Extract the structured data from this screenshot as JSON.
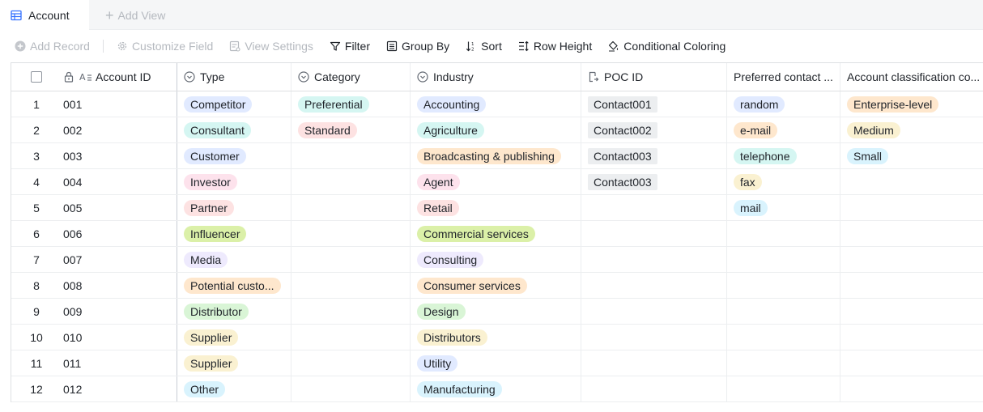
{
  "tabs": {
    "active_label": "Account",
    "add_label": "Add View"
  },
  "toolbar": {
    "add_record": "Add Record",
    "customize_field": "Customize Field",
    "view_settings": "View Settings",
    "filter": "Filter",
    "group_by": "Group By",
    "sort": "Sort",
    "row_height": "Row Height",
    "conditional_coloring": "Conditional Coloring"
  },
  "columns": {
    "account_id": "Account ID",
    "type": "Type",
    "category": "Category",
    "industry": "Industry",
    "poc_id": "POC ID",
    "preferred_contact": "Preferred contact ...",
    "account_classification": "Account classification co..."
  },
  "colors": {
    "blue": "#e1eaff",
    "teal": "#d5f6f2",
    "pink": "#fde2e2",
    "purple": "#eeeafd",
    "green": "#d9f5d6",
    "lime": "#dbf0a8",
    "orange": "#fee7cd",
    "yellow": "#faf1d1",
    "cyan": "#d9f3fd",
    "rose": "#fde2ec"
  },
  "rows": [
    {
      "num": "1",
      "id": "001",
      "type": "Competitor",
      "type_color": "#e1eaff",
      "category": "Preferential",
      "category_color": "#d5f6f2",
      "industry": "Accounting",
      "industry_color": "#e1eaff",
      "poc": "Contact001",
      "contact": "random",
      "contact_color": "#e1eaff",
      "class": "Enterprise-level",
      "class_color": "#fee7cd"
    },
    {
      "num": "2",
      "id": "002",
      "type": "Consultant",
      "type_color": "#d5f6f2",
      "category": "Standard",
      "category_color": "#fde2e2",
      "industry": "Agriculture",
      "industry_color": "#d5f6f2",
      "poc": "Contact002",
      "contact": "e-mail",
      "contact_color": "#fee7cd",
      "class": "Medium",
      "class_color": "#faf1d1"
    },
    {
      "num": "3",
      "id": "003",
      "type": "Customer",
      "type_color": "#e1eaff",
      "category": "",
      "category_color": "",
      "industry": "Broadcasting & publishing",
      "industry_color": "#fee7cd",
      "poc": "Contact003",
      "contact": "telephone",
      "contact_color": "#d5f6f2",
      "class": "Small",
      "class_color": "#d9f3fd"
    },
    {
      "num": "4",
      "id": "004",
      "type": "Investor",
      "type_color": "#fde2ec",
      "category": "",
      "category_color": "",
      "industry": "Agent",
      "industry_color": "#fde2ec",
      "poc": "Contact003",
      "contact": "fax",
      "contact_color": "#faf1d1",
      "class": "",
      "class_color": ""
    },
    {
      "num": "5",
      "id": "005",
      "type": "Partner",
      "type_color": "#fde2e2",
      "category": "",
      "category_color": "",
      "industry": "Retail",
      "industry_color": "#fde2e2",
      "poc": "",
      "contact": "mail",
      "contact_color": "#d9f3fd",
      "class": "",
      "class_color": ""
    },
    {
      "num": "6",
      "id": "006",
      "type": "Influencer",
      "type_color": "#dbf0a8",
      "category": "",
      "category_color": "",
      "industry": "Commercial services",
      "industry_color": "#dbf0a8",
      "poc": "",
      "contact": "",
      "contact_color": "",
      "class": "",
      "class_color": ""
    },
    {
      "num": "7",
      "id": "007",
      "type": "Media",
      "type_color": "#eeeafd",
      "category": "",
      "category_color": "",
      "industry": "Consulting",
      "industry_color": "#eeeafd",
      "poc": "",
      "contact": "",
      "contact_color": "",
      "class": "",
      "class_color": ""
    },
    {
      "num": "8",
      "id": "008",
      "type": "Potential custo...",
      "type_color": "#fee7cd",
      "category": "",
      "category_color": "",
      "industry": "Consumer services",
      "industry_color": "#fee7cd",
      "poc": "",
      "contact": "",
      "contact_color": "",
      "class": "",
      "class_color": ""
    },
    {
      "num": "9",
      "id": "009",
      "type": "Distributor",
      "type_color": "#d9f5d6",
      "category": "",
      "category_color": "",
      "industry": "Design",
      "industry_color": "#d9f5d6",
      "poc": "",
      "contact": "",
      "contact_color": "",
      "class": "",
      "class_color": ""
    },
    {
      "num": "10",
      "id": "010",
      "type": "Supplier",
      "type_color": "#faf1d1",
      "category": "",
      "category_color": "",
      "industry": "Distributors",
      "industry_color": "#faf1d1",
      "poc": "",
      "contact": "",
      "contact_color": "",
      "class": "",
      "class_color": ""
    },
    {
      "num": "11",
      "id": "011",
      "type": "Supplier",
      "type_color": "#faf1d1",
      "category": "",
      "category_color": "",
      "industry": "Utility",
      "industry_color": "#e1eaff",
      "poc": "",
      "contact": "",
      "contact_color": "",
      "class": "",
      "class_color": ""
    },
    {
      "num": "12",
      "id": "012",
      "type": "Other",
      "type_color": "#d9f3fd",
      "category": "",
      "category_color": "",
      "industry": "Manufacturing",
      "industry_color": "#d9f3fd",
      "poc": "",
      "contact": "",
      "contact_color": "",
      "class": "",
      "class_color": ""
    }
  ]
}
